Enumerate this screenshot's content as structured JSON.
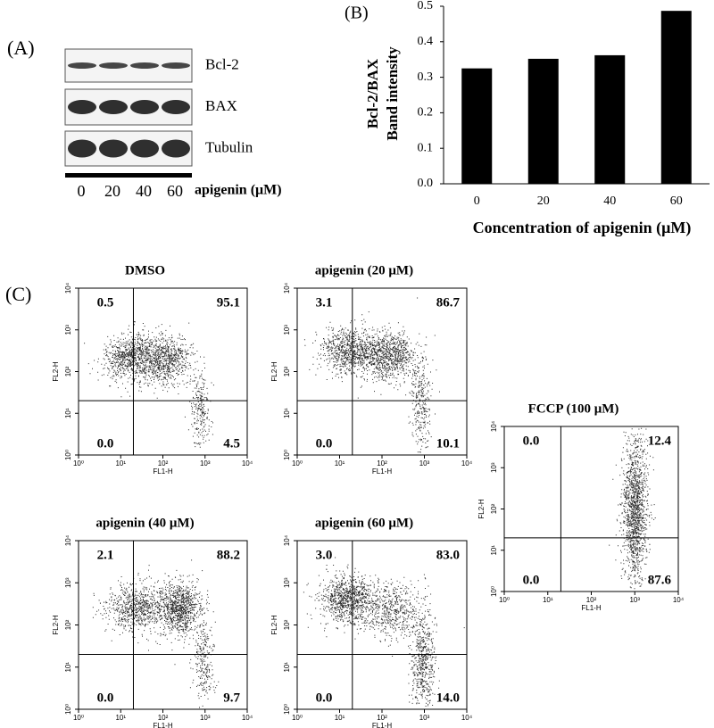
{
  "panel_labels": [
    "(A)",
    "(B)",
    "(C)"
  ],
  "blot": {
    "bands": [
      "Bcl-2",
      "BAX",
      "Tubulin"
    ],
    "lanes": [
      "0",
      "20",
      "40",
      "60"
    ],
    "lane_title": "apigenin (μM)"
  },
  "chart_data": [
    {
      "type": "bar",
      "ylabel": [
        "Bcl-2/BAX",
        "Band intensity"
      ],
      "xlabel": "Concentration of apigenin (μM)",
      "categories": [
        "0",
        "20",
        "40",
        "60"
      ],
      "values": [
        0.325,
        0.352,
        0.362,
        0.487
      ],
      "color": "#000000",
      "ylim": [
        0,
        0.5
      ],
      "yticks": [
        {
          "value": 0,
          "label": "0.0"
        },
        0.1,
        0.2,
        0.3,
        0.4,
        0.5
      ]
    },
    {
      "type": "quadrant",
      "title": "DMSO",
      "xlabel": "FL1-H",
      "ylabel": "FL2-H",
      "log": true,
      "xlim": [
        1,
        10000
      ],
      "ylim": [
        1,
        10000
      ],
      "xticks": [
        {
          "value": 1,
          "label": "10⁰"
        },
        {
          "value": 10,
          "label": "10¹"
        },
        {
          "value": 100,
          "label": "10²"
        },
        {
          "value": 1000,
          "label": "10³"
        },
        {
          "value": 10000,
          "label": "10⁴"
        }
      ],
      "yticks": [
        {
          "value": 1,
          "label": "10⁰"
        },
        {
          "value": 10,
          "label": "10¹"
        },
        {
          "value": 100,
          "label": "10²"
        },
        {
          "value": 1000,
          "label": "10³"
        },
        {
          "value": 10000,
          "label": "10⁴"
        }
      ],
      "gate": [
        20,
        20
      ],
      "values": [
        0.5,
        95.1,
        0.0,
        4.5
      ],
      "value_labels": [
        "0.5",
        "95.1",
        "0.0",
        "4.5"
      ]
    },
    {
      "type": "quadrant",
      "title": "apigenin (20 μM)",
      "xlabel": "FL1-H",
      "ylabel": "FL2-H",
      "log": true,
      "xlim": [
        1,
        10000
      ],
      "ylim": [
        1,
        10000
      ],
      "xticks": [
        {
          "value": 1,
          "label": "10⁰"
        },
        {
          "value": 10,
          "label": "10¹"
        },
        {
          "value": 100,
          "label": "10²"
        },
        {
          "value": 1000,
          "label": "10³"
        },
        {
          "value": 10000,
          "label": "10⁴"
        }
      ],
      "yticks": [
        {
          "value": 1,
          "label": "10⁰"
        },
        {
          "value": 10,
          "label": "10¹"
        },
        {
          "value": 100,
          "label": "10²"
        },
        {
          "value": 1000,
          "label": "10³"
        },
        {
          "value": 10000,
          "label": "10⁴"
        }
      ],
      "gate": [
        20,
        20
      ],
      "values": [
        3.1,
        86.7,
        0.0,
        10.1
      ],
      "value_labels": [
        "3.1",
        "86.7",
        "0.0",
        "10.1"
      ]
    },
    {
      "type": "quadrant",
      "title": "FCCP (100 μM)",
      "xlabel": "FL1-H",
      "ylabel": "FL2-H",
      "log": true,
      "xlim": [
        1,
        10000
      ],
      "ylim": [
        1,
        10000
      ],
      "xticks": [
        {
          "value": 1,
          "label": "10⁰"
        },
        {
          "value": 10,
          "label": "10¹"
        },
        {
          "value": 100,
          "label": "10²"
        },
        {
          "value": 1000,
          "label": "10³"
        },
        {
          "value": 10000,
          "label": "10⁴"
        }
      ],
      "yticks": [
        {
          "value": 1,
          "label": "10⁰"
        },
        {
          "value": 10,
          "label": "10¹"
        },
        {
          "value": 100,
          "label": "10²"
        },
        {
          "value": 1000,
          "label": "10³"
        },
        {
          "value": 10000,
          "label": "10⁴"
        }
      ],
      "gate": [
        20,
        20
      ],
      "values": [
        0.0,
        12.4,
        0.0,
        87.6
      ],
      "value_labels": [
        "0.0",
        "12.4",
        "0.0",
        "87.6"
      ]
    },
    {
      "type": "quadrant",
      "title": "apigenin (40 μM)",
      "xlabel": "FL1-H",
      "ylabel": "FL2-H",
      "log": true,
      "xlim": [
        1,
        10000
      ],
      "ylim": [
        1,
        10000
      ],
      "xticks": [
        {
          "value": 1,
          "label": "10⁰"
        },
        {
          "value": 10,
          "label": "10¹"
        },
        {
          "value": 100,
          "label": "10²"
        },
        {
          "value": 1000,
          "label": "10³"
        },
        {
          "value": 10000,
          "label": "10⁴"
        }
      ],
      "yticks": [
        {
          "value": 1,
          "label": "10⁰"
        },
        {
          "value": 10,
          "label": "10¹"
        },
        {
          "value": 100,
          "label": "10²"
        },
        {
          "value": 1000,
          "label": "10³"
        },
        {
          "value": 10000,
          "label": "10⁴"
        }
      ],
      "gate": [
        20,
        20
      ],
      "values": [
        2.1,
        88.2,
        0.0,
        9.7
      ],
      "value_labels": [
        "2.1",
        "88.2",
        "0.0",
        "9.7"
      ]
    },
    {
      "type": "quadrant",
      "title": "apigenin (60 μM)",
      "xlabel": "FL1-H",
      "ylabel": "FL2-H",
      "log": true,
      "xlim": [
        1,
        10000
      ],
      "ylim": [
        1,
        10000
      ],
      "xticks": [
        {
          "value": 1,
          "label": "10⁰"
        },
        {
          "value": 10,
          "label": "10¹"
        },
        {
          "value": 100,
          "label": "10²"
        },
        {
          "value": 1000,
          "label": "10³"
        },
        {
          "value": 10000,
          "label": "10⁴"
        }
      ],
      "yticks": [
        {
          "value": 1,
          "label": "10⁰"
        },
        {
          "value": 10,
          "label": "10¹"
        },
        {
          "value": 100,
          "label": "10²"
        },
        {
          "value": 1000,
          "label": "10³"
        },
        {
          "value": 10000,
          "label": "10⁴"
        }
      ],
      "gate": [
        20,
        20
      ],
      "values": [
        3.0,
        83.0,
        0.0,
        14.0
      ],
      "value_labels": [
        "3.0",
        "83.0",
        "0.0",
        "14.0"
      ]
    }
  ]
}
